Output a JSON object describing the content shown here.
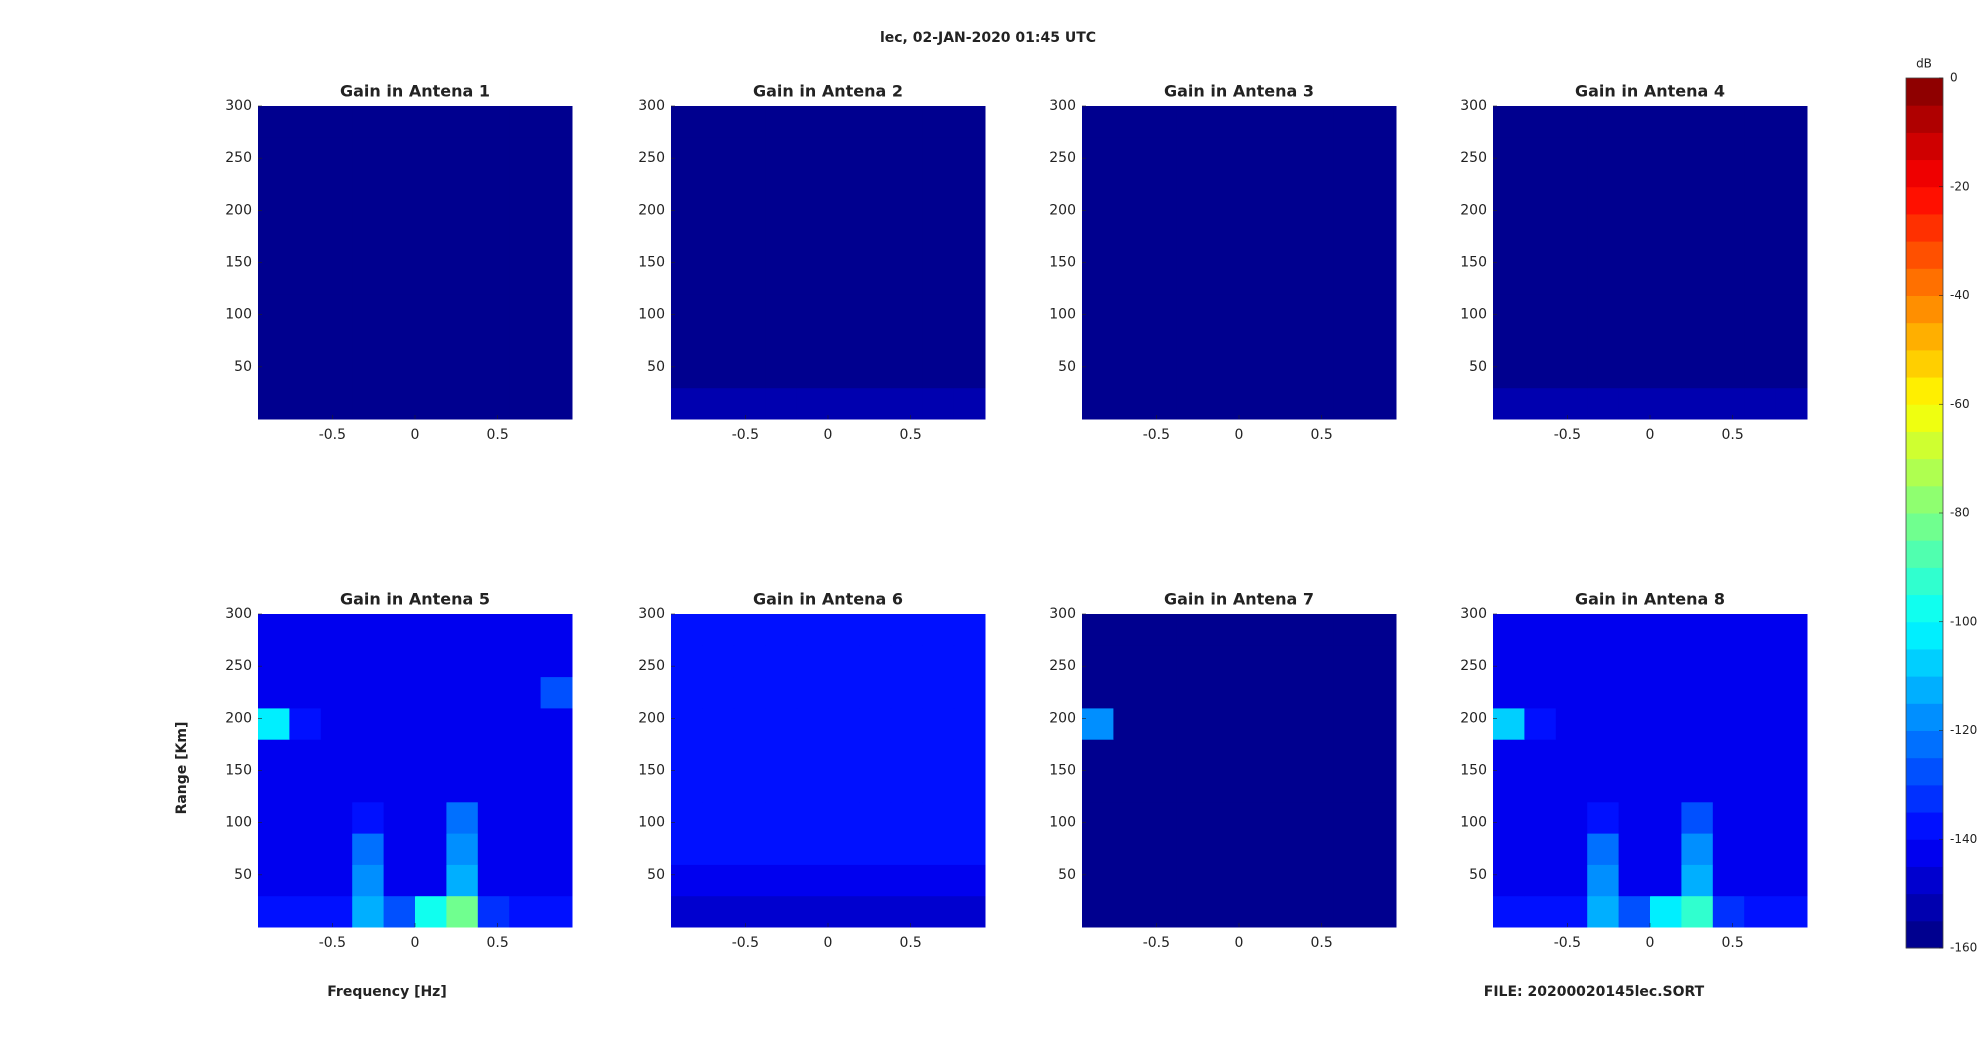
{
  "chart_data": {
    "type": "heatmap",
    "title": "lec, 02-JAN-2020 01:45 UTC",
    "xlabel": "Frequency [Hz]",
    "ylabel": "Range [Km]",
    "footer": "FILE: 20200020145lec.SORT",
    "xlim": [
      -0.95,
      0.95
    ],
    "ylim": [
      0,
      300
    ],
    "xticks": [
      -0.5,
      0,
      0.5
    ],
    "yticks": [
      50,
      100,
      150,
      200,
      250,
      300
    ],
    "colormap": "jet",
    "colorbar_label": "dB",
    "clim": [
      -160,
      0
    ],
    "cticks": [
      0,
      -20,
      -40,
      -60,
      -80,
      -100,
      -120,
      -140,
      -160
    ],
    "panels": [
      {
        "title": "Gain in Antena 1",
        "values": [
          [
            -158,
            -158,
            -158,
            -158,
            -158,
            -158,
            -158,
            -158,
            -158,
            -158
          ],
          [
            -158,
            -158,
            -158,
            -158,
            -158,
            -158,
            -158,
            -158,
            -158,
            -158
          ],
          [
            -158,
            -158,
            -158,
            -158,
            -158,
            -158,
            -158,
            -158,
            -158,
            -158
          ],
          [
            -158,
            -158,
            -158,
            -158,
            -158,
            -158,
            -158,
            -158,
            -158,
            -158
          ],
          [
            -158,
            -158,
            -158,
            -158,
            -158,
            -158,
            -158,
            -158,
            -158,
            -158
          ],
          [
            -158,
            -158,
            -158,
            -158,
            -158,
            -158,
            -158,
            -158,
            -158,
            -158
          ],
          [
            -158,
            -158,
            -158,
            -158,
            -158,
            -158,
            -158,
            -158,
            -158,
            -158
          ],
          [
            -158,
            -158,
            -158,
            -158,
            -158,
            -158,
            -158,
            -158,
            -158,
            -158
          ],
          [
            -158,
            -158,
            -158,
            -158,
            -158,
            -158,
            -158,
            -158,
            -158,
            -158
          ],
          [
            -158,
            -158,
            -158,
            -158,
            -158,
            -158,
            -158,
            -158,
            -158,
            -158
          ]
        ]
      },
      {
        "title": "Gain in Antena 2",
        "values": [
          [
            -152,
            -152,
            -152,
            -152,
            -152,
            -152,
            -152,
            -152,
            -152,
            -152
          ],
          [
            -158,
            -158,
            -158,
            -158,
            -158,
            -158,
            -158,
            -158,
            -158,
            -158
          ],
          [
            -158,
            -158,
            -158,
            -158,
            -158,
            -158,
            -158,
            -158,
            -158,
            -158
          ],
          [
            -158,
            -158,
            -158,
            -158,
            -158,
            -158,
            -158,
            -158,
            -158,
            -158
          ],
          [
            -158,
            -158,
            -158,
            -158,
            -158,
            -158,
            -158,
            -158,
            -158,
            -158
          ],
          [
            -158,
            -158,
            -158,
            -158,
            -158,
            -158,
            -158,
            -158,
            -158,
            -158
          ],
          [
            -158,
            -158,
            -158,
            -158,
            -158,
            -158,
            -158,
            -158,
            -158,
            -158
          ],
          [
            -158,
            -158,
            -158,
            -158,
            -158,
            -158,
            -158,
            -158,
            -158,
            -158
          ],
          [
            -158,
            -158,
            -158,
            -158,
            -158,
            -158,
            -158,
            -158,
            -158,
            -158
          ],
          [
            -158,
            -158,
            -158,
            -158,
            -158,
            -158,
            -158,
            -158,
            -158,
            -158
          ]
        ]
      },
      {
        "title": "Gain in Antena 3",
        "values": [
          [
            -158,
            -158,
            -158,
            -158,
            -158,
            -158,
            -158,
            -158,
            -158,
            -158
          ],
          [
            -158,
            -158,
            -158,
            -158,
            -158,
            -158,
            -158,
            -158,
            -158,
            -158
          ],
          [
            -158,
            -158,
            -158,
            -158,
            -158,
            -158,
            -158,
            -158,
            -158,
            -158
          ],
          [
            -158,
            -158,
            -158,
            -158,
            -158,
            -158,
            -158,
            -158,
            -158,
            -158
          ],
          [
            -158,
            -158,
            -158,
            -158,
            -158,
            -158,
            -158,
            -158,
            -158,
            -158
          ],
          [
            -158,
            -158,
            -158,
            -158,
            -158,
            -158,
            -158,
            -158,
            -158,
            -158
          ],
          [
            -158,
            -158,
            -158,
            -158,
            -158,
            -158,
            -158,
            -158,
            -158,
            -158
          ],
          [
            -158,
            -158,
            -158,
            -158,
            -158,
            -158,
            -158,
            -158,
            -158,
            -158
          ],
          [
            -158,
            -158,
            -158,
            -158,
            -158,
            -158,
            -158,
            -158,
            -158,
            -158
          ],
          [
            -158,
            -158,
            -158,
            -158,
            -158,
            -158,
            -158,
            -158,
            -158,
            -158
          ]
        ]
      },
      {
        "title": "Gain in Antena 4",
        "values": [
          [
            -154,
            -154,
            -154,
            -154,
            -154,
            -154,
            -154,
            -154,
            -154,
            -154
          ],
          [
            -158,
            -158,
            -158,
            -158,
            -158,
            -158,
            -158,
            -158,
            -158,
            -158
          ],
          [
            -158,
            -158,
            -158,
            -158,
            -158,
            -158,
            -158,
            -158,
            -158,
            -158
          ],
          [
            -158,
            -158,
            -158,
            -158,
            -158,
            -158,
            -158,
            -158,
            -158,
            -158
          ],
          [
            -158,
            -158,
            -158,
            -158,
            -158,
            -158,
            -158,
            -158,
            -158,
            -158
          ],
          [
            -158,
            -158,
            -158,
            -158,
            -158,
            -158,
            -158,
            -158,
            -158,
            -158
          ],
          [
            -158,
            -158,
            -158,
            -158,
            -158,
            -158,
            -158,
            -158,
            -158,
            -158
          ],
          [
            -158,
            -158,
            -158,
            -158,
            -158,
            -158,
            -158,
            -158,
            -158,
            -158
          ],
          [
            -158,
            -158,
            -158,
            -158,
            -158,
            -158,
            -158,
            -158,
            -158,
            -158
          ],
          [
            -158,
            -158,
            -158,
            -158,
            -158,
            -158,
            -158,
            -158,
            -158,
            -158
          ]
        ]
      },
      {
        "title": "Gain in Antena 5",
        "values": [
          [
            -138,
            -138,
            -138,
            -115,
            -128,
            -100,
            -85,
            -132,
            -138,
            -138
          ],
          [
            -145,
            -145,
            -145,
            -118,
            -145,
            -145,
            -112,
            -145,
            -145,
            -145
          ],
          [
            -145,
            -145,
            -145,
            -125,
            -145,
            -145,
            -118,
            -145,
            -145,
            -145
          ],
          [
            -145,
            -145,
            -145,
            -138,
            -145,
            -145,
            -125,
            -145,
            -145,
            -145
          ],
          [
            -145,
            -145,
            -145,
            -145,
            -145,
            -145,
            -145,
            -145,
            -145,
            -145
          ],
          [
            -145,
            -145,
            -145,
            -145,
            -145,
            -145,
            -145,
            -145,
            -145,
            -145
          ],
          [
            -105,
            -138,
            -145,
            -145,
            -145,
            -145,
            -145,
            -145,
            -145,
            -145
          ],
          [
            -145,
            -145,
            -145,
            -145,
            -145,
            -145,
            -145,
            -145,
            -145,
            -128
          ],
          [
            -145,
            -145,
            -145,
            -145,
            -145,
            -145,
            -145,
            -145,
            -145,
            -145
          ],
          [
            -145,
            -145,
            -145,
            -145,
            -145,
            -145,
            -145,
            -145,
            -145,
            -145
          ]
        ]
      },
      {
        "title": "Gain in Antena 6",
        "values": [
          [
            -150,
            -150,
            -150,
            -150,
            -150,
            -150,
            -150,
            -150,
            -150,
            -150
          ],
          [
            -142,
            -142,
            -142,
            -142,
            -142,
            -142,
            -142,
            -142,
            -142,
            -142
          ],
          [
            -138,
            -138,
            -138,
            -138,
            -138,
            -138,
            -138,
            -138,
            -138,
            -138
          ],
          [
            -138,
            -138,
            -138,
            -138,
            -138,
            -138,
            -138,
            -138,
            -138,
            -138
          ],
          [
            -138,
            -138,
            -138,
            -138,
            -138,
            -138,
            -138,
            -138,
            -138,
            -138
          ],
          [
            -138,
            -138,
            -138,
            -138,
            -138,
            -138,
            -138,
            -138,
            -138,
            -138
          ],
          [
            -138,
            -138,
            -138,
            -138,
            -138,
            -138,
            -138,
            -138,
            -138,
            -138
          ],
          [
            -138,
            -138,
            -138,
            -138,
            -138,
            -138,
            -138,
            -138,
            -138,
            -138
          ],
          [
            -138,
            -138,
            -138,
            -138,
            -138,
            -138,
            -138,
            -138,
            -138,
            -138
          ],
          [
            -138,
            -138,
            -138,
            -138,
            -138,
            -138,
            -138,
            -138,
            -138,
            -138
          ]
        ]
      },
      {
        "title": "Gain in Antena 7",
        "values": [
          [
            -158,
            -158,
            -158,
            -158,
            -158,
            -158,
            -158,
            -158,
            -158,
            -158
          ],
          [
            -158,
            -158,
            -158,
            -158,
            -158,
            -158,
            -158,
            -158,
            -158,
            -158
          ],
          [
            -158,
            -158,
            -158,
            -158,
            -158,
            -158,
            -158,
            -158,
            -158,
            -158
          ],
          [
            -158,
            -158,
            -158,
            -158,
            -158,
            -158,
            -158,
            -158,
            -158,
            -158
          ],
          [
            -158,
            -158,
            -158,
            -158,
            -158,
            -158,
            -158,
            -158,
            -158,
            -158
          ],
          [
            -158,
            -158,
            -158,
            -158,
            -158,
            -158,
            -158,
            -158,
            -158,
            -158
          ],
          [
            -118,
            -158,
            -158,
            -158,
            -158,
            -158,
            -158,
            -158,
            -158,
            -158
          ],
          [
            -158,
            -158,
            -158,
            -158,
            -158,
            -158,
            -158,
            -158,
            -158,
            -158
          ],
          [
            -158,
            -158,
            -158,
            -158,
            -158,
            -158,
            -158,
            -158,
            -158,
            -158
          ],
          [
            -158,
            -158,
            -158,
            -158,
            -158,
            -158,
            -158,
            -158,
            -158,
            -158
          ]
        ]
      },
      {
        "title": "Gain in Antena 8",
        "values": [
          [
            -138,
            -138,
            -138,
            -112,
            -128,
            -105,
            -95,
            -132,
            -138,
            -138
          ],
          [
            -145,
            -145,
            -145,
            -118,
            -145,
            -145,
            -115,
            -145,
            -145,
            -145
          ],
          [
            -145,
            -145,
            -145,
            -125,
            -145,
            -145,
            -120,
            -145,
            -145,
            -145
          ],
          [
            -145,
            -145,
            -145,
            -140,
            -145,
            -145,
            -130,
            -145,
            -145,
            -145
          ],
          [
            -145,
            -145,
            -145,
            -145,
            -145,
            -145,
            -145,
            -145,
            -145,
            -145
          ],
          [
            -145,
            -145,
            -145,
            -145,
            -145,
            -145,
            -145,
            -145,
            -145,
            -145
          ],
          [
            -108,
            -140,
            -145,
            -145,
            -145,
            -145,
            -145,
            -145,
            -145,
            -145
          ],
          [
            -145,
            -145,
            -145,
            -145,
            -145,
            -145,
            -145,
            -145,
            -145,
            -145
          ],
          [
            -145,
            -145,
            -145,
            -145,
            -145,
            -145,
            -145,
            -145,
            -145,
            -145
          ],
          [
            -145,
            -145,
            -145,
            -145,
            -145,
            -145,
            -145,
            -145,
            -145,
            -145
          ]
        ]
      }
    ]
  }
}
